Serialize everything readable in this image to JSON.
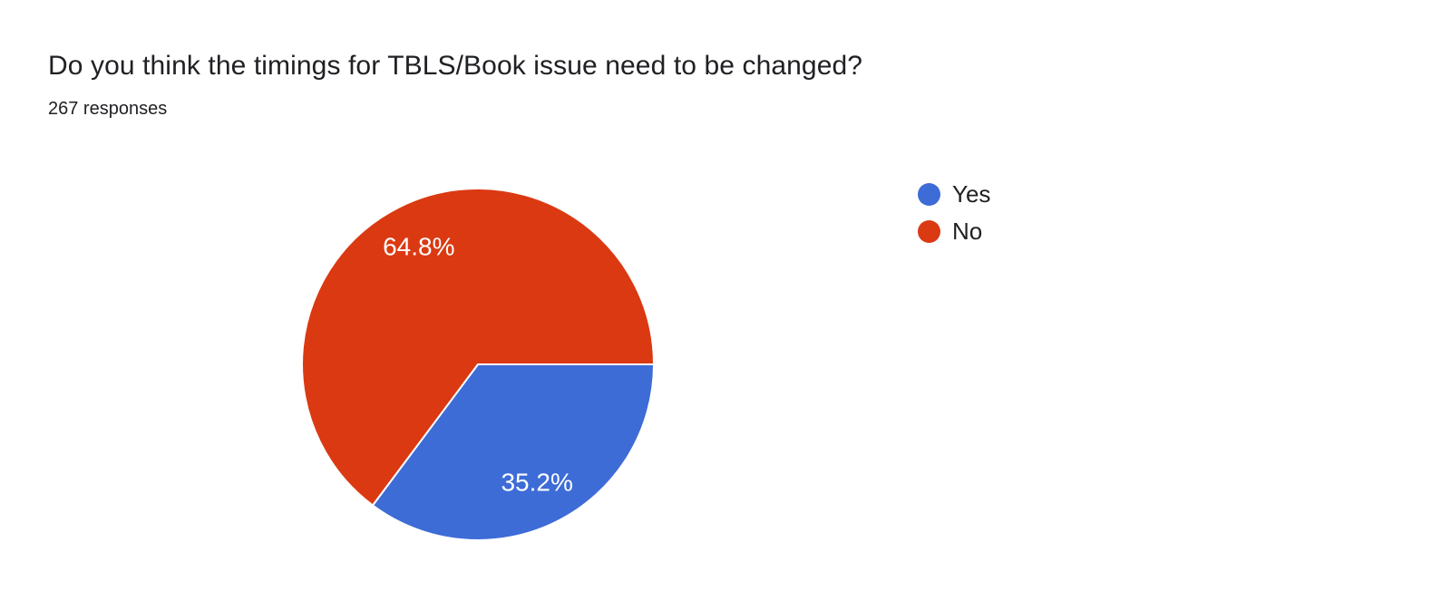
{
  "header": {
    "title": "Do you think the timings for TBLS/Book issue need to be changed?",
    "responses_count": "267 responses"
  },
  "chart_data": {
    "type": "pie",
    "title": "Do you think the timings for TBLS/Book issue need to be changed?",
    "subtitle": "267 responses",
    "total_responses": 267,
    "categories": [
      "Yes",
      "No"
    ],
    "values": [
      35.2,
      64.8
    ],
    "slice_labels": [
      "35.2%",
      "64.8%"
    ],
    "colors": [
      "#3d6cd7",
      "#db3912"
    ],
    "slice_label_color": "#ffffff",
    "slice_separator_color": "#ffffff",
    "start_angle_deg": 0,
    "direction": "clockwise",
    "legend_position": "right",
    "legend": [
      {
        "label": "Yes",
        "color": "#3d6cd7"
      },
      {
        "label": "No",
        "color": "#db3912"
      }
    ]
  }
}
